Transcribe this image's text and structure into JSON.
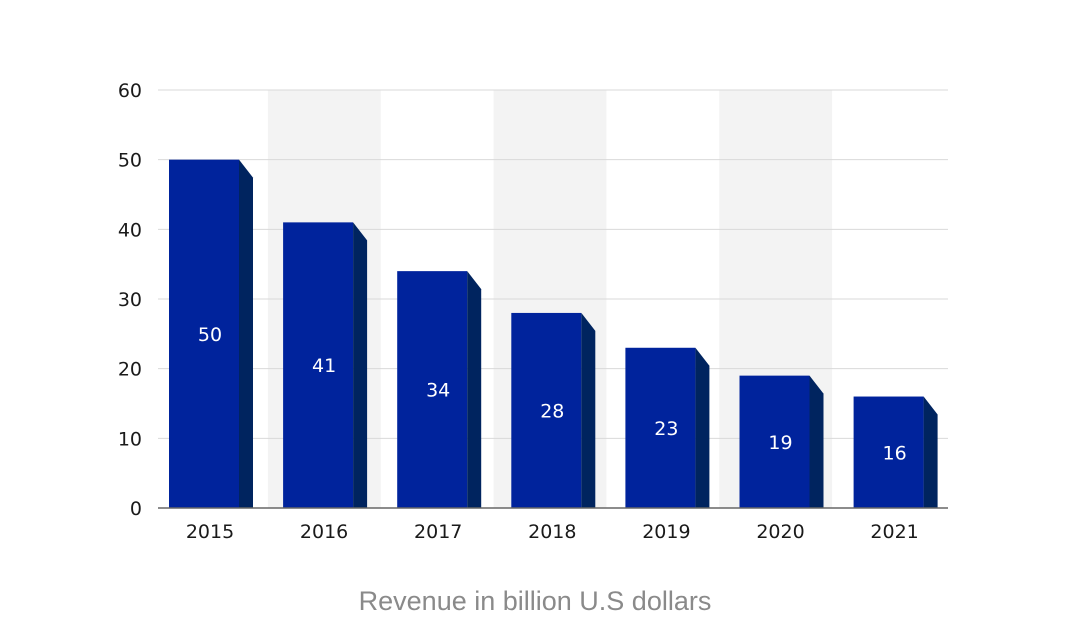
{
  "chart_data": {
    "type": "bar",
    "title": "",
    "xlabel": "Revenue in billion U.S dollars",
    "ylabel": "",
    "categories": [
      "2015",
      "2016",
      "2017",
      "2018",
      "2019",
      "2020",
      "2021"
    ],
    "values": [
      50,
      41,
      34,
      28,
      23,
      19,
      16
    ],
    "data_labels": [
      "50",
      "41",
      "34",
      "28",
      "23",
      "19",
      "16"
    ],
    "ylim": [
      0,
      60
    ],
    "yticks": [
      0,
      10,
      20,
      30,
      40,
      50,
      60
    ],
    "ytick_labels": [
      "0",
      "10",
      "20",
      "30",
      "40",
      "50",
      "60"
    ],
    "grid": true,
    "legend": "none",
    "colors": {
      "bar_front": "#00239c",
      "bar_side": "#00245f",
      "band": "#f3f3f3",
      "grid": "#d9d9d9",
      "axis": "#666666"
    }
  }
}
